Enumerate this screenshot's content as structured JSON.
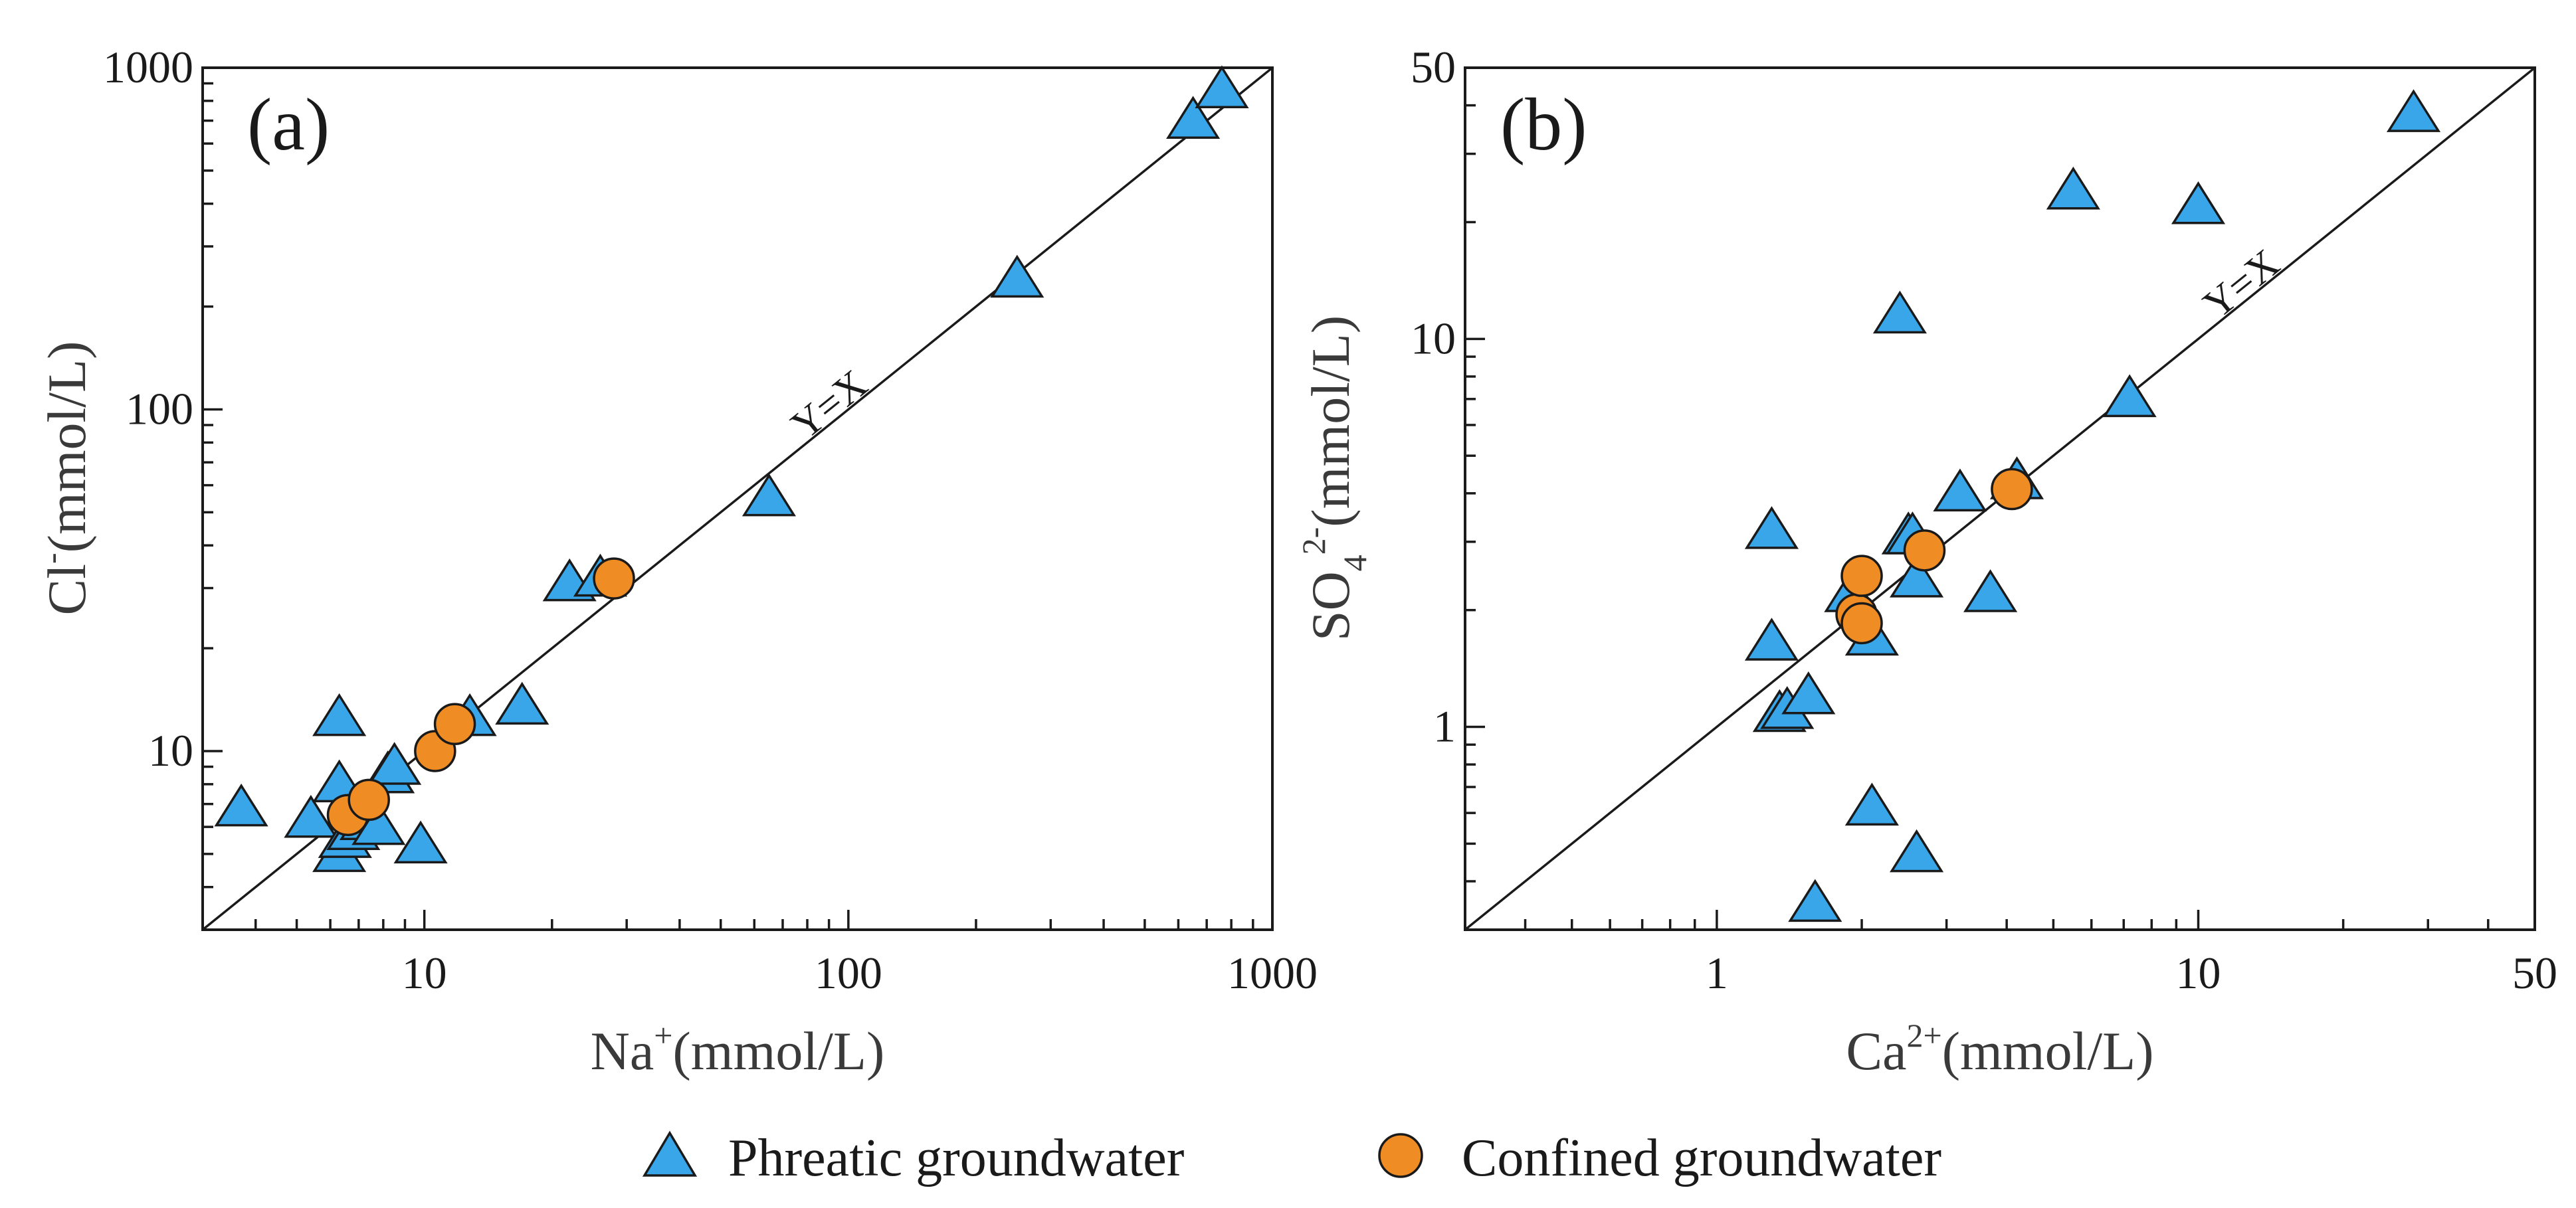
{
  "colors": {
    "phreatic": "#3aa6ea",
    "confined": "#f08c24",
    "axis": "#1a1a1a"
  },
  "legend": {
    "phreatic_label": "Phreatic groundwater",
    "confined_label": "Confined groundwater"
  },
  "chart_data": [
    {
      "type": "scatter",
      "panel": "(a)",
      "xscale": "log",
      "yscale": "log",
      "xlim": [
        3,
        1000
      ],
      "ylim": [
        3,
        1000
      ],
      "xticks": [
        10,
        100,
        1000
      ],
      "xtick_labels": [
        "10",
        "100",
        "1000"
      ],
      "yticks": [
        10,
        100,
        1000
      ],
      "ytick_labels": [
        "10",
        "100",
        "1000"
      ],
      "xlabel": {
        "base": "Na",
        "sup": "+",
        "unit": "(mmol/L)"
      },
      "ylabel": {
        "base": "Cl",
        "sup": "-",
        "unit": "(mmol/L)"
      },
      "reference_line": {
        "label": "Y=X",
        "slope": 1
      },
      "series": [
        {
          "name": "Phreatic groundwater",
          "marker": "triangle",
          "points": [
            [
              3.7,
              6.8
            ],
            [
              5.4,
              6.3
            ],
            [
              6.3,
              12.5
            ],
            [
              6.3,
              8.0
            ],
            [
              6.3,
              5.0
            ],
            [
              6.5,
              5.5
            ],
            [
              6.8,
              5.8
            ],
            [
              7.3,
              6.2
            ],
            [
              7.8,
              6.0
            ],
            [
              8.2,
              8.5
            ],
            [
              8.5,
              9.0
            ],
            [
              9.8,
              5.3
            ],
            [
              12.8,
              12.5
            ],
            [
              17.0,
              13.5
            ],
            [
              22.0,
              31.0
            ],
            [
              26.0,
              32.0
            ],
            [
              65.0,
              55.0
            ],
            [
              250.0,
              240.0
            ],
            [
              650.0,
              700.0
            ],
            [
              760.0,
              860.0
            ]
          ]
        },
        {
          "name": "Confined groundwater",
          "marker": "circle",
          "points": [
            [
              6.6,
              6.5
            ],
            [
              7.4,
              7.2
            ],
            [
              10.6,
              10.0
            ],
            [
              11.8,
              12.0
            ],
            [
              28.0,
              32.0
            ]
          ]
        }
      ]
    },
    {
      "type": "scatter",
      "panel": "(b)",
      "xscale": "log",
      "yscale": "log",
      "xlim": [
        0.3,
        50
      ],
      "ylim": [
        0.3,
        50
      ],
      "xticks": [
        1,
        10,
        50
      ],
      "xtick_labels": [
        "1",
        "10",
        "50"
      ],
      "yticks": [
        1,
        10,
        50
      ],
      "ytick_labels": [
        "1",
        "10",
        "50"
      ],
      "xlabel": {
        "base": "Ca",
        "sup": "2+",
        "unit": "(mmol/L)"
      },
      "ylabel": {
        "base": "SO",
        "sub": "4",
        "sup": "2-",
        "unit": "(mmol/L)"
      },
      "reference_line": {
        "label": "Y=X",
        "slope": 1
      },
      "series": [
        {
          "name": "Phreatic groundwater",
          "marker": "triangle",
          "points": [
            [
              1.6,
              0.35
            ],
            [
              2.1,
              0.62
            ],
            [
              2.6,
              0.47
            ],
            [
              1.35,
              1.08
            ],
            [
              1.4,
              1.1
            ],
            [
              1.55,
              1.2
            ],
            [
              1.3,
              1.65
            ],
            [
              1.3,
              3.2
            ],
            [
              1.9,
              2.2
            ],
            [
              2.1,
              1.7
            ],
            [
              2.6,
              2.4
            ],
            [
              2.5,
              3.1
            ],
            [
              2.55,
              3.1
            ],
            [
              3.2,
              4.0
            ],
            [
              3.7,
              2.2
            ],
            [
              4.2,
              4.3
            ],
            [
              7.2,
              7.0
            ],
            [
              2.4,
              11.5
            ],
            [
              5.5,
              24.0
            ],
            [
              10.0,
              22.0
            ],
            [
              28.0,
              38.0
            ]
          ]
        },
        {
          "name": "Confined groundwater",
          "marker": "circle",
          "points": [
            [
              1.95,
              1.95
            ],
            [
              2.0,
              1.85
            ],
            [
              2.0,
              2.45
            ],
            [
              2.7,
              2.85
            ],
            [
              4.1,
              4.1
            ]
          ]
        }
      ]
    }
  ]
}
